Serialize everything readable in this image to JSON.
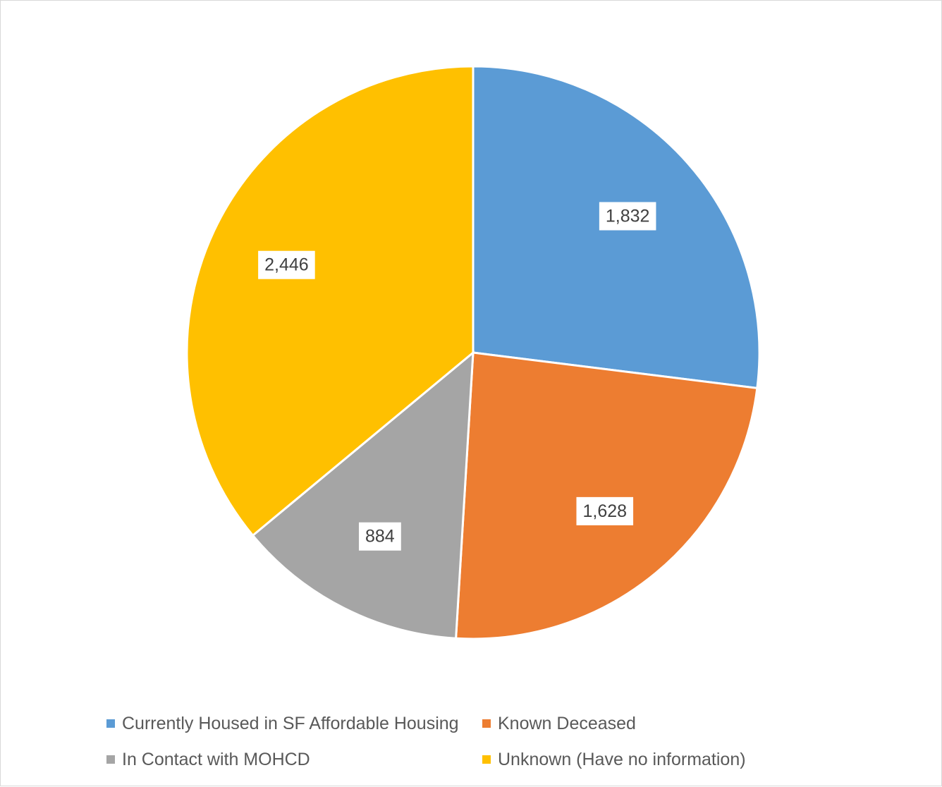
{
  "chart_data": {
    "type": "pie",
    "title": "",
    "legend_position": "bottom",
    "series": [
      {
        "slices": [
          {
            "label": "Currently Housed in SF Affordable Housing",
            "value": 1832,
            "display": "1,832",
            "color": "#5B9BD5"
          },
          {
            "label": "Known Deceased",
            "value": 1628,
            "display": "1,628",
            "color": "#ED7D31"
          },
          {
            "label": "In Contact with MOHCD",
            "value": 884,
            "display": "884",
            "color": "#A5A5A5"
          },
          {
            "label": "Unknown (Have no information)",
            "value": 2446,
            "display": "2,446",
            "color": "#FFC000"
          }
        ]
      }
    ]
  }
}
